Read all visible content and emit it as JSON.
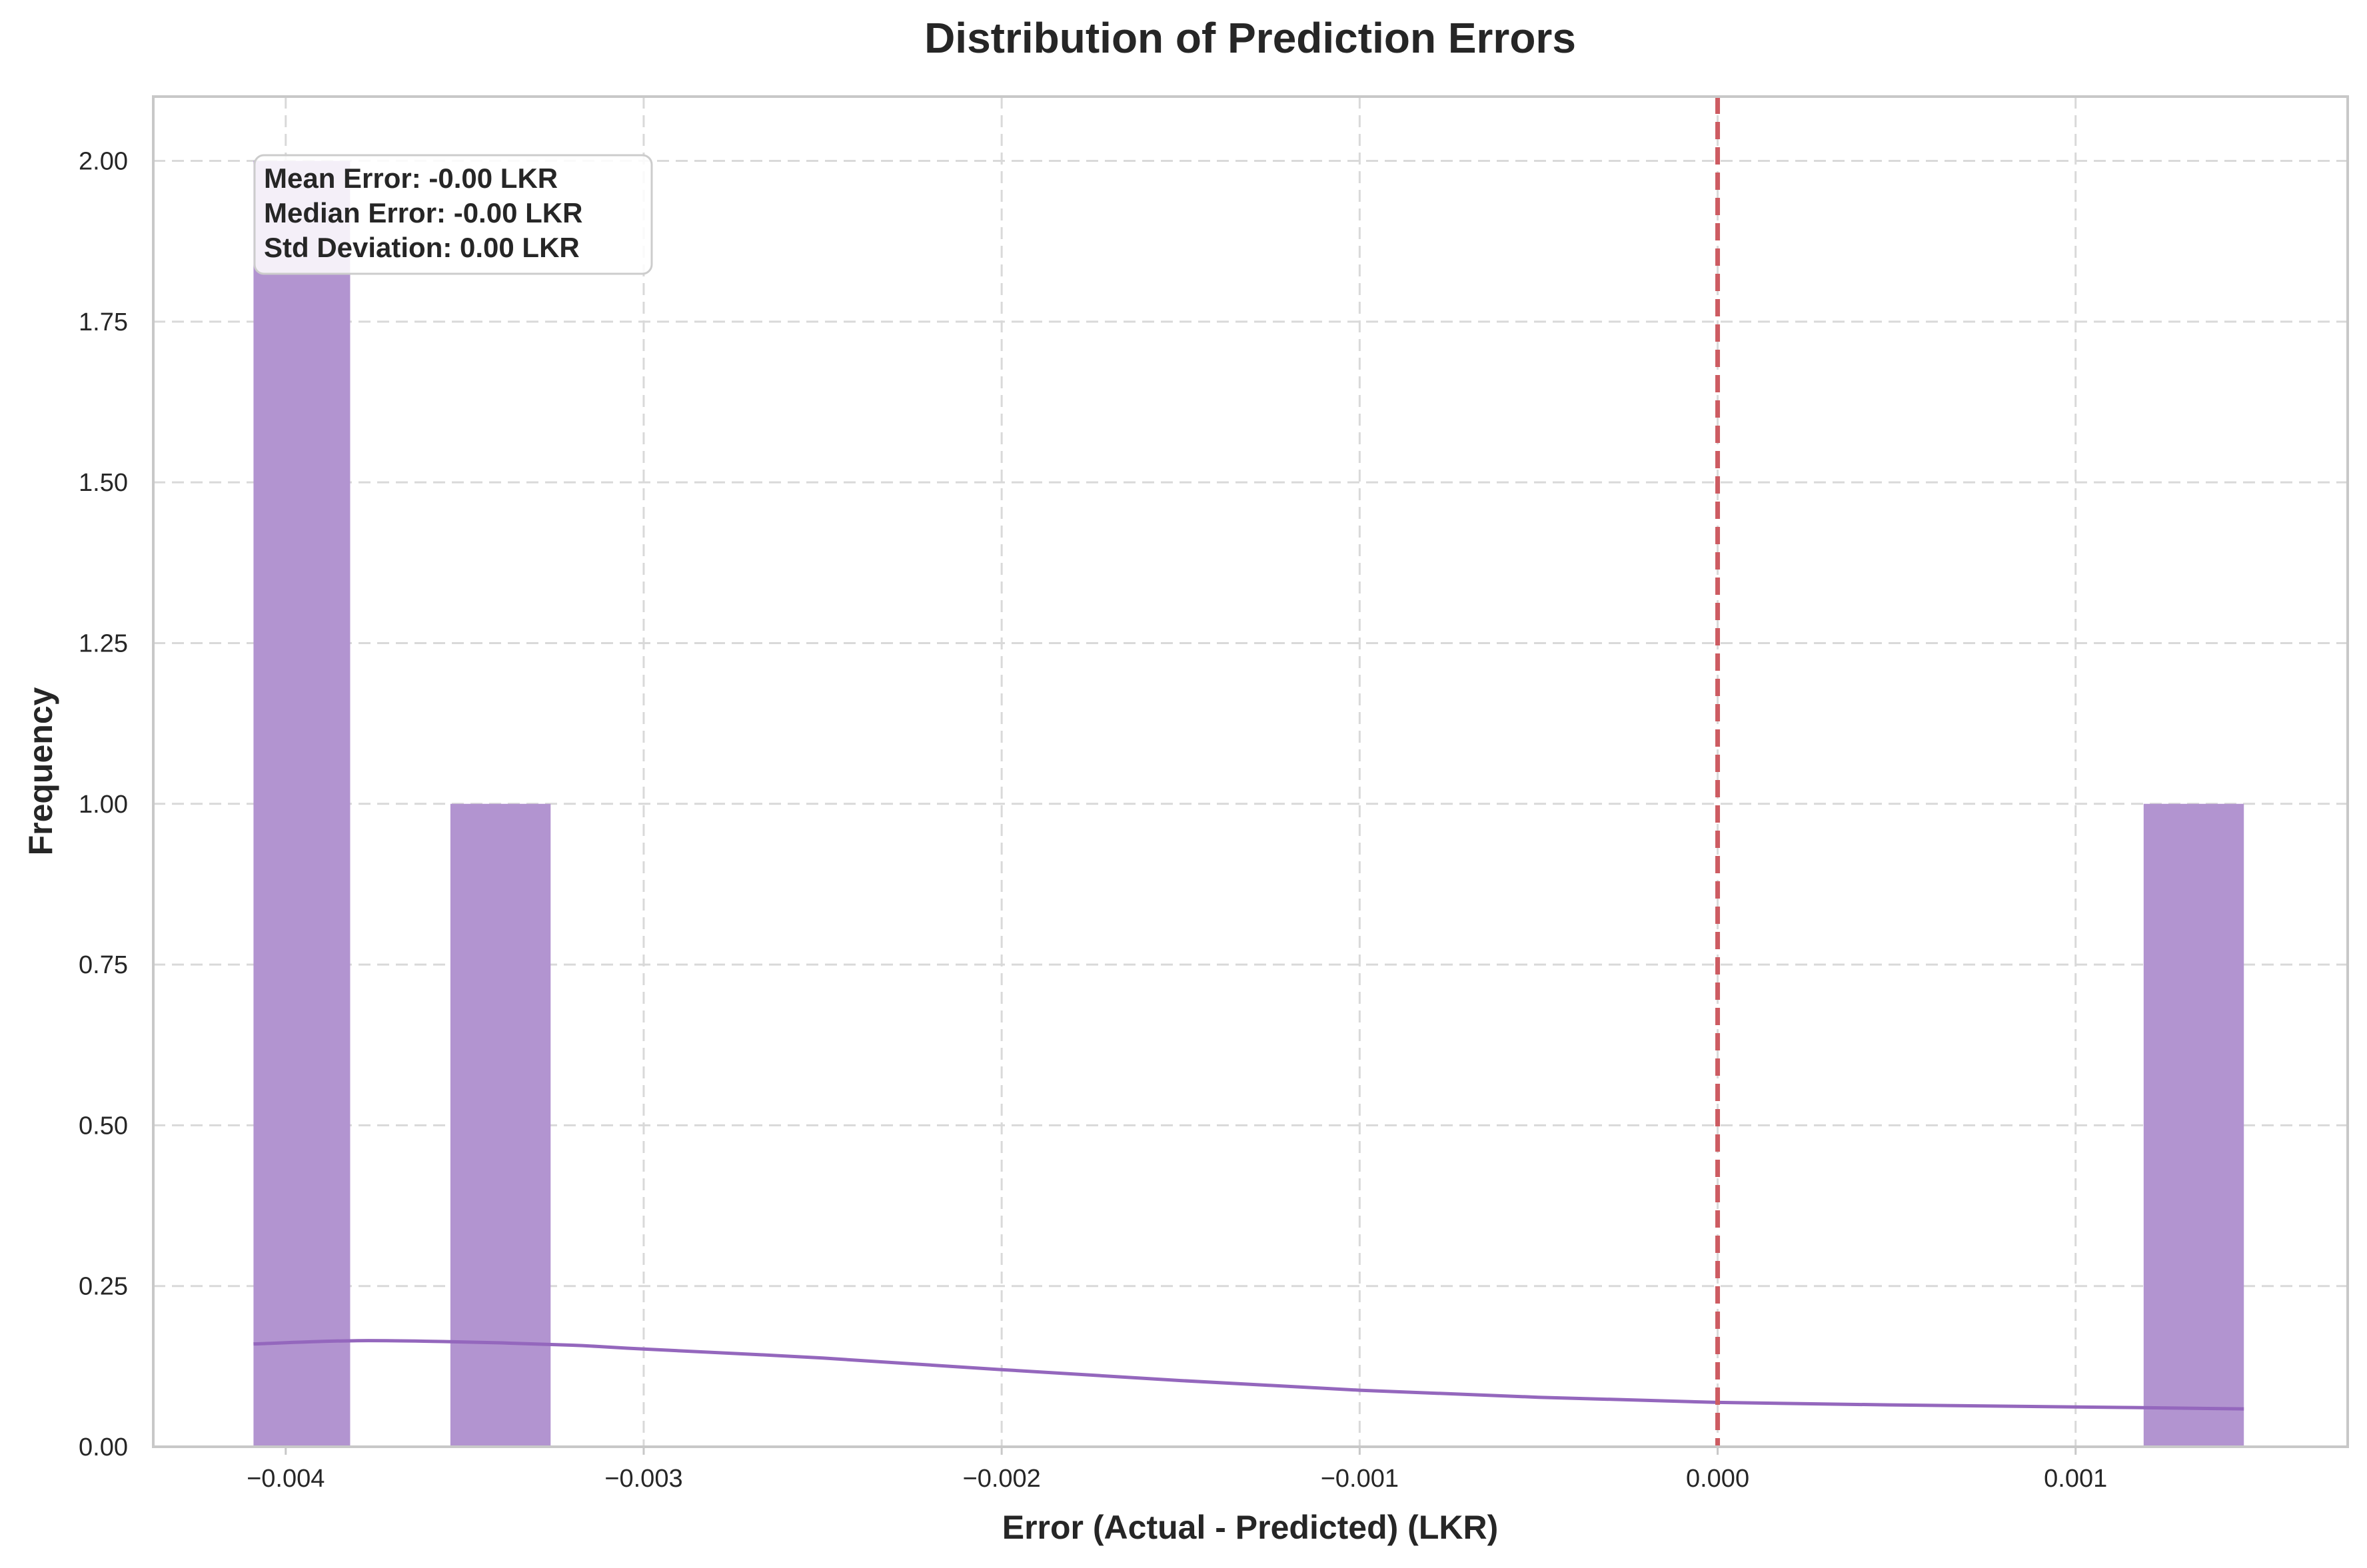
{
  "chart_data": {
    "type": "bar",
    "title": "Distribution of Prediction Errors",
    "xlabel": "Error (Actual - Predicted) (LKR)",
    "ylabel": "Frequency",
    "xlim": [
      -0.00437,
      0.00176
    ],
    "ylim": [
      0,
      2.1
    ],
    "grid": true,
    "grid_style": "dashed",
    "x_ticks": [
      {
        "value": -0.004,
        "label": "−0.004"
      },
      {
        "value": -0.003,
        "label": "−0.003"
      },
      {
        "value": -0.002,
        "label": "−0.002"
      },
      {
        "value": -0.001,
        "label": "−0.001"
      },
      {
        "value": 0.0,
        "label": "0.000"
      },
      {
        "value": 0.001,
        "label": "0.001"
      }
    ],
    "y_ticks": [
      {
        "value": 0.0,
        "label": "0.00"
      },
      {
        "value": 0.25,
        "label": "0.25"
      },
      {
        "value": 0.5,
        "label": "0.50"
      },
      {
        "value": 0.75,
        "label": "0.75"
      },
      {
        "value": 1.0,
        "label": "1.00"
      },
      {
        "value": 1.25,
        "label": "1.25"
      },
      {
        "value": 1.5,
        "label": "1.50"
      },
      {
        "value": 1.75,
        "label": "1.75"
      },
      {
        "value": 2.0,
        "label": "2.00"
      }
    ],
    "bars": [
      {
        "x0": -0.00409,
        "x1": -0.00382,
        "count": 2
      },
      {
        "x0": -0.00354,
        "x1": -0.00326,
        "count": 1
      },
      {
        "x0": 0.00119,
        "x1": 0.00147,
        "count": 1
      }
    ],
    "kde": {
      "x": [
        -0.00409,
        -0.0038,
        -0.0035,
        -0.0032,
        -0.003,
        -0.0025,
        -0.002,
        -0.0015,
        -0.001,
        -0.0005,
        0.0,
        0.0005,
        0.001,
        0.00147
      ],
      "y": [
        0.16,
        0.165,
        0.163,
        0.158,
        0.152,
        0.138,
        0.12,
        0.103,
        0.088,
        0.077,
        0.069,
        0.065,
        0.062,
        0.059
      ]
    },
    "reference_line": {
      "x": 0.0,
      "style": "dashed"
    },
    "stats_box": {
      "lines": [
        "Mean Error: -0.00 LKR",
        "Median Error: -0.00 LKR",
        "Std Deviation: 0.00 LKR"
      ],
      "placement": "top-left"
    },
    "colors": {
      "bar": "#b294d0",
      "kde": "#9467bd",
      "reference_line": "#cd5c62",
      "grid": "#d9d9d9",
      "axes": "#c8c8c8",
      "text": "#262626"
    }
  }
}
